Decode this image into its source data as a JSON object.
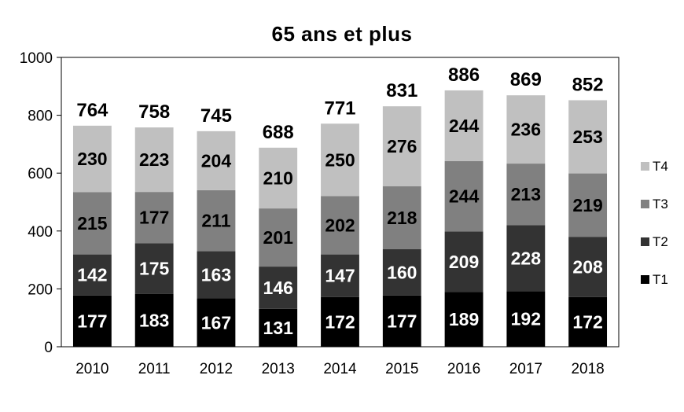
{
  "chart_data": {
    "type": "bar",
    "stacked": true,
    "title": "65 ans et plus",
    "categories": [
      "2010",
      "2011",
      "2012",
      "2013",
      "2014",
      "2015",
      "2016",
      "2017",
      "2018"
    ],
    "series": [
      {
        "name": "T1",
        "color": "#000000",
        "label_color": "#ffffff",
        "values": [
          177,
          183,
          167,
          131,
          172,
          177,
          189,
          192,
          172
        ]
      },
      {
        "name": "T2",
        "color": "#333333",
        "label_color": "#ffffff",
        "values": [
          142,
          175,
          163,
          146,
          147,
          160,
          209,
          228,
          208
        ]
      },
      {
        "name": "T3",
        "color": "#808080",
        "label_color": "#000000",
        "values": [
          215,
          177,
          211,
          201,
          202,
          218,
          244,
          213,
          219
        ]
      },
      {
        "name": "T4",
        "color": "#c0c0c0",
        "label_color": "#000000",
        "values": [
          230,
          223,
          204,
          210,
          250,
          276,
          244,
          236,
          253
        ]
      }
    ],
    "totals": [
      "764",
      "758",
      "745",
      "688",
      "771",
      "831",
      "886",
      "869",
      "852"
    ],
    "ylim": [
      0,
      1000
    ],
    "yticks": [
      0,
      200,
      400,
      600,
      800,
      1000
    ],
    "legend_position": "right",
    "grid": false
  }
}
